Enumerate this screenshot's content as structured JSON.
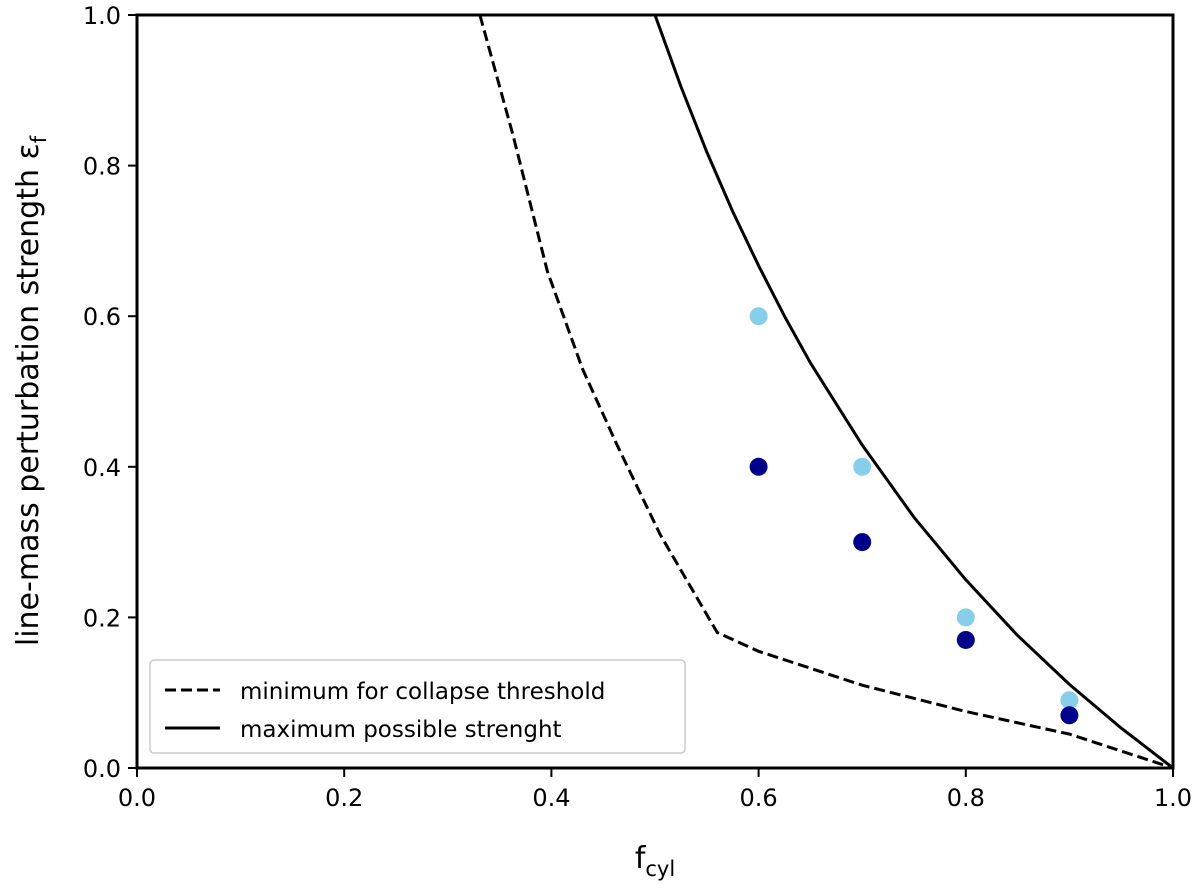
{
  "chart_data": {
    "type": "scatter",
    "xlabel": "f",
    "xlabel_sub": "cyl",
    "ylabel": "line-mass perturbation strength ε",
    "ylabel_sub": "f",
    "xlim": [
      0.0,
      1.0
    ],
    "ylim": [
      0.0,
      1.0
    ],
    "xticks": [
      "0.0",
      "0.2",
      "0.4",
      "0.6",
      "0.8",
      "1.0"
    ],
    "yticks": [
      "0.0",
      "0.2",
      "0.4",
      "0.6",
      "0.8",
      "1.0"
    ],
    "grid": false,
    "legend_position": "bottom-left",
    "lines": [
      {
        "name": "minimum for collapse threshold",
        "style": "dashed",
        "color": "#000000",
        "x": [
          0.331,
          0.363,
          0.396,
          0.43,
          0.463,
          0.505,
          0.56,
          0.6,
          0.7,
          0.8,
          0.9,
          1.0
        ],
        "y": [
          1.0,
          0.84,
          0.66,
          0.53,
          0.43,
          0.31,
          0.18,
          0.155,
          0.11,
          0.075,
          0.045,
          0.0
        ]
      },
      {
        "name": "maximum possible strenght",
        "style": "solid",
        "color": "#000000",
        "x": [
          0.5,
          0.525,
          0.55,
          0.575,
          0.6,
          0.625,
          0.65,
          0.7,
          0.75,
          0.8,
          0.85,
          0.9,
          0.95,
          1.0
        ],
        "y": [
          1.0,
          0.905,
          0.818,
          0.739,
          0.667,
          0.6,
          0.538,
          0.429,
          0.333,
          0.25,
          0.176,
          0.111,
          0.053,
          0.0
        ]
      }
    ],
    "series": [
      {
        "color": "#87ceeb",
        "x": [
          0.6,
          0.7,
          0.8,
          0.9
        ],
        "y": [
          0.6,
          0.4,
          0.2,
          0.09
        ]
      },
      {
        "color": "#00008b",
        "x": [
          0.6,
          0.7,
          0.8,
          0.9
        ],
        "y": [
          0.4,
          0.3,
          0.17,
          0.07
        ]
      }
    ]
  }
}
